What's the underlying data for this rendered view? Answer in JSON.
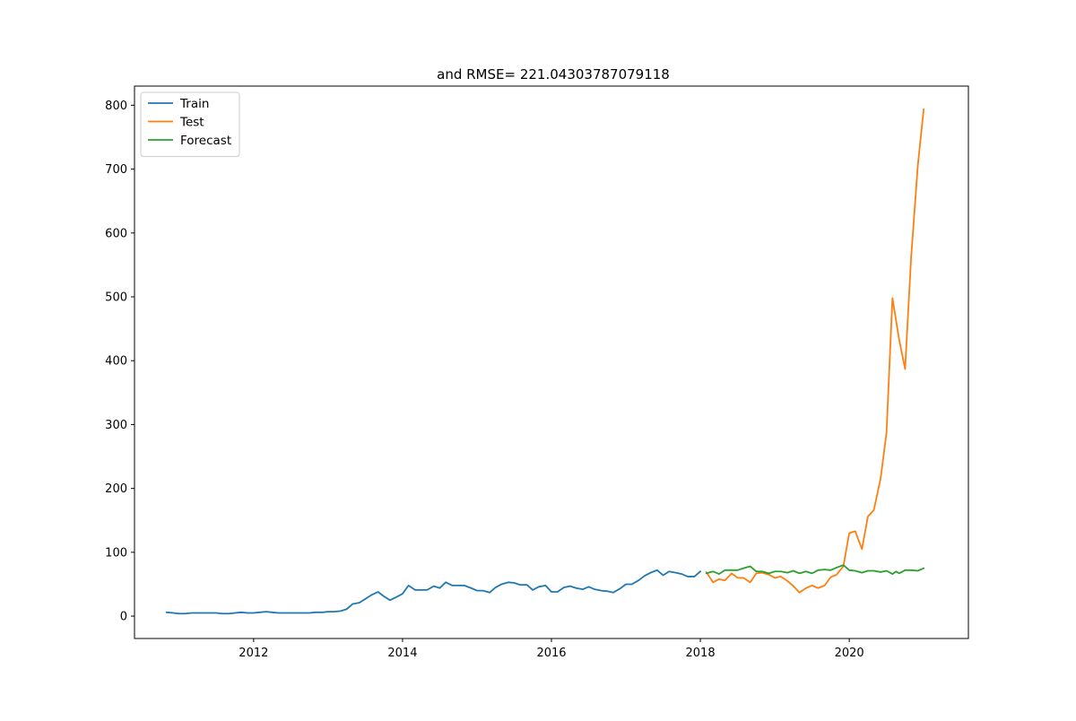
{
  "chart_data": {
    "type": "line",
    "title": "and RMSE= 221.04303787079118",
    "xlabel": "",
    "ylabel": "",
    "x_unit": "year",
    "xlim": [
      2010.4,
      2021.6
    ],
    "ylim": [
      -35,
      830
    ],
    "x_ticks": [
      2012,
      2014,
      2016,
      2018,
      2020
    ],
    "x_tick_labels": [
      "2012",
      "2014",
      "2016",
      "2018",
      "2020"
    ],
    "y_ticks": [
      0,
      100,
      200,
      300,
      400,
      500,
      600,
      700,
      800
    ],
    "y_tick_labels": [
      "0",
      "100",
      "200",
      "300",
      "400",
      "500",
      "600",
      "700",
      "800"
    ],
    "grid": false,
    "legend_position": "upper-left",
    "series": [
      {
        "name": "Train",
        "color": "#1f77b4",
        "x": [
          2010.83,
          2010.92,
          2011.0,
          2011.08,
          2011.17,
          2011.25,
          2011.33,
          2011.42,
          2011.5,
          2011.58,
          2011.67,
          2011.75,
          2011.83,
          2011.92,
          2012.0,
          2012.08,
          2012.17,
          2012.25,
          2012.33,
          2012.42,
          2012.5,
          2012.58,
          2012.67,
          2012.75,
          2012.83,
          2012.92,
          2013.0,
          2013.08,
          2013.17,
          2013.25,
          2013.33,
          2013.42,
          2013.5,
          2013.58,
          2013.67,
          2013.75,
          2013.83,
          2013.92,
          2014.0,
          2014.08,
          2014.17,
          2014.25,
          2014.33,
          2014.42,
          2014.5,
          2014.58,
          2014.67,
          2014.75,
          2014.83,
          2014.92,
          2015.0,
          2015.08,
          2015.17,
          2015.25,
          2015.33,
          2015.42,
          2015.5,
          2015.58,
          2015.67,
          2015.75,
          2015.83,
          2015.92,
          2016.0,
          2016.08,
          2016.17,
          2016.25,
          2016.33,
          2016.42,
          2016.5,
          2016.58,
          2016.67,
          2016.75,
          2016.83,
          2016.92,
          2017.0,
          2017.08,
          2017.17,
          2017.25,
          2017.33,
          2017.42,
          2017.5,
          2017.58,
          2017.67,
          2017.75,
          2017.83,
          2017.92,
          2018.0
        ],
        "y": [
          6,
          5,
          4,
          4,
          5,
          5,
          5,
          5,
          5,
          4,
          4,
          5,
          6,
          5,
          5,
          6,
          7,
          6,
          5,
          5,
          5,
          5,
          5,
          5,
          6,
          6,
          7,
          7,
          8,
          11,
          19,
          21,
          27,
          33,
          38,
          31,
          25,
          30,
          35,
          48,
          41,
          41,
          41,
          47,
          44,
          53,
          48,
          48,
          48,
          44,
          40,
          40,
          37,
          45,
          50,
          53,
          52,
          49,
          49,
          41,
          46,
          48,
          38,
          38,
          45,
          47,
          44,
          42,
          46,
          42,
          40,
          39,
          37,
          43,
          50,
          50,
          56,
          63,
          68,
          72,
          64,
          70,
          68,
          66,
          62,
          62,
          70
        ]
      },
      {
        "name": "Test",
        "color": "#ff7f0e",
        "x": [
          2018.08,
          2018.17,
          2018.25,
          2018.33,
          2018.42,
          2018.5,
          2018.58,
          2018.67,
          2018.75,
          2018.83,
          2018.92,
          2019.0,
          2019.08,
          2019.17,
          2019.25,
          2019.33,
          2019.42,
          2019.5,
          2019.58,
          2019.67,
          2019.75,
          2019.83,
          2019.92,
          2020.0,
          2020.08,
          2020.17,
          2020.25,
          2020.33,
          2020.42,
          2020.5,
          2020.58,
          2020.67,
          2020.75,
          2020.83,
          2020.92,
          2021.0
        ],
        "y": [
          69,
          53,
          58,
          56,
          67,
          60,
          60,
          53,
          67,
          68,
          65,
          60,
          62,
          55,
          47,
          37,
          44,
          48,
          44,
          48,
          61,
          65,
          78,
          130,
          133,
          105,
          156,
          166,
          215,
          287,
          498,
          433,
          387,
          560,
          705,
          794
        ]
      },
      {
        "name": "Forecast",
        "color": "#2ca02c",
        "x": [
          2018.08,
          2018.17,
          2018.25,
          2018.33,
          2018.42,
          2018.5,
          2018.58,
          2018.67,
          2018.75,
          2018.83,
          2018.92,
          2019.0,
          2019.08,
          2019.17,
          2019.25,
          2019.33,
          2019.42,
          2019.5,
          2019.58,
          2019.67,
          2019.75,
          2019.83,
          2019.92,
          2020.0,
          2020.08,
          2020.17,
          2020.25,
          2020.33,
          2020.42,
          2020.5,
          2020.58,
          2020.63,
          2020.67,
          2020.75,
          2020.83,
          2020.92,
          2021.0
        ],
        "y": [
          67,
          70,
          66,
          72,
          72,
          72,
          75,
          78,
          70,
          70,
          67,
          70,
          70,
          68,
          71,
          67,
          70,
          67,
          72,
          73,
          72,
          76,
          80,
          72,
          71,
          68,
          71,
          71,
          69,
          71,
          66,
          70,
          67,
          72,
          72,
          71,
          75
        ]
      }
    ]
  }
}
